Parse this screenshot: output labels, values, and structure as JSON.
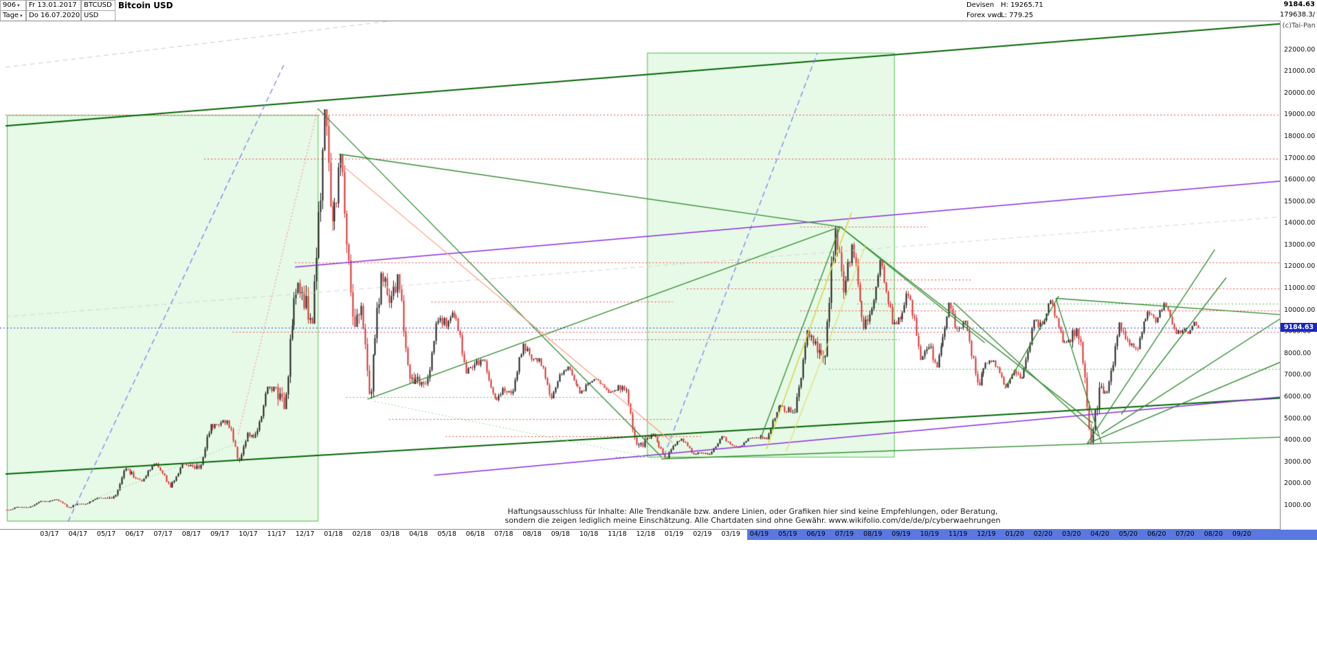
{
  "header": {
    "bars_count": "906",
    "start_date": "Fr 13.01.2017",
    "symbol": "BTCUSD",
    "title": "Bitcoin USD",
    "period": "Tage",
    "end_date": "Do 16.07.2020",
    "currency": "USD",
    "category": "Devisen",
    "high": "H: 19265.71",
    "source": "Forex vwd",
    "low": "L: 779.25",
    "last_price": "9184.63",
    "volume": "179638.3/",
    "copyright": "(c)Tai-Pan",
    "dropdown_glyph": "▾"
  },
  "disclaimer": {
    "line1": "Haftungsausschluss für Inhalte: Alle Trendkanäle bzw. andere Linien, oder Grafiken hier sind keine Empfehlungen, oder Beratung,",
    "line2": "sondern die zeigen lediglich meine Einschätzung. Alle Chartdaten sind ohne Gewähr.  www.wikifolio.com/de/de/p/cyberwaehrungen"
  },
  "chart_data": {
    "type": "candlestick",
    "symbol": "BTCUSD",
    "title": "Bitcoin USD",
    "period": "daily",
    "price_axis": {
      "ticks_top": 22000,
      "ticks_bottom": 1000,
      "step": 1000,
      "view_top": 23350,
      "view_bottom": -80
    },
    "x_tick_offset": 1.55,
    "x_ticks": [
      "03/17",
      "04/17",
      "05/17",
      "06/17",
      "07/17",
      "08/17",
      "09/17",
      "10/17",
      "11/17",
      "12/17",
      "01/18",
      "02/18",
      "03/18",
      "04/18",
      "05/18",
      "06/18",
      "07/18",
      "08/18",
      "09/18",
      "10/18",
      "11/18",
      "12/18",
      "01/19",
      "02/19",
      "03/19",
      "04/19",
      "05/19",
      "06/19",
      "07/19",
      "08/19",
      "09/19",
      "10/19",
      "11/19",
      "12/19",
      "01/20",
      "02/20",
      "03/20",
      "04/20",
      "05/20",
      "06/20",
      "07/20",
      "08/20",
      "09/20"
    ],
    "x_axis_highlight_from": "04/19",
    "candles_per_month": 14,
    "colors": {
      "up": "#151515",
      "down": "#dd2626",
      "box_fill": "rgba(170,235,170,0.28)",
      "box_stroke": "#4fc24f"
    },
    "current_price_line": {
      "price": 9184.63,
      "color": "#2840d8"
    },
    "monthly_ohlc": [
      [
        "01/17",
        800,
        935,
        779.25,
        925,
        0,
        0.55
      ],
      [
        "02/17",
        925,
        1210,
        905,
        1190,
        0.55,
        1
      ],
      [
        "03/17",
        1190,
        1290,
        890,
        1080,
        1.55,
        1
      ],
      [
        "04/17",
        1080,
        1360,
        1060,
        1350,
        2.55,
        1
      ],
      [
        "05/17",
        1350,
        2780,
        1320,
        2290,
        3.55,
        1
      ],
      [
        "06/17",
        2290,
        2990,
        2110,
        2480,
        4.55,
        1
      ],
      [
        "07/17",
        2480,
        2920,
        1830,
        2870,
        5.55,
        1
      ],
      [
        "08/17",
        2870,
        4760,
        2660,
        4720,
        6.55,
        1
      ],
      [
        "09/17",
        4720,
        4940,
        2980,
        4350,
        7.55,
        1
      ],
      [
        "10/17",
        4350,
        6480,
        4120,
        6460,
        8.55,
        1
      ],
      [
        "11/17",
        6460,
        11420,
        5440,
        10100,
        9.55,
        1
      ],
      [
        "12/17",
        10100,
        19265.71,
        9380,
        14100,
        10.55,
        1
      ],
      [
        "01/18",
        14100,
        17180,
        9230,
        10200,
        11.55,
        1
      ],
      [
        "02/18",
        10200,
        11790,
        5920,
        10340,
        12.55,
        1
      ],
      [
        "03/18",
        10340,
        11660,
        6600,
        6930,
        13.55,
        1
      ],
      [
        "04/18",
        6930,
        9760,
        6430,
        9240,
        14.55,
        1
      ],
      [
        "05/18",
        9240,
        9990,
        7080,
        7500,
        15.55,
        1
      ],
      [
        "06/18",
        7500,
        7780,
        5790,
        6400,
        16.55,
        1
      ],
      [
        "07/18",
        6400,
        8480,
        6070,
        7730,
        17.55,
        1
      ],
      [
        "08/18",
        7730,
        7790,
        5880,
        7030,
        18.55,
        1
      ],
      [
        "09/18",
        7030,
        7410,
        6160,
        6630,
        19.55,
        1
      ],
      [
        "10/18",
        6630,
        6850,
        6190,
        6320,
        20.55,
        1
      ],
      [
        "11/18",
        6320,
        6550,
        3650,
        4040,
        21.55,
        1
      ],
      [
        "12/18",
        4040,
        4310,
        3150,
        3740,
        22.55,
        1
      ],
      [
        "01/19",
        3740,
        4090,
        3350,
        3440,
        23.55,
        1
      ],
      [
        "02/19",
        3440,
        4200,
        3340,
        3830,
        24.55,
        1
      ],
      [
        "03/19",
        3830,
        4140,
        3660,
        4100,
        25.55,
        1
      ],
      [
        "04/19",
        4100,
        5640,
        4050,
        5320,
        26.55,
        1
      ],
      [
        "05/19",
        5320,
        9080,
        5280,
        8560,
        27.55,
        1
      ],
      [
        "06/19",
        8560,
        13850,
        7480,
        10820,
        28.55,
        1
      ],
      [
        "07/19",
        10820,
        13130,
        9080,
        10080,
        29.55,
        1
      ],
      [
        "08/19",
        10080,
        12320,
        9350,
        9590,
        30.55,
        1
      ],
      [
        "09/19",
        9590,
        10900,
        7710,
        8290,
        31.55,
        1
      ],
      [
        "10/19",
        8290,
        10350,
        7360,
        9150,
        32.55,
        1
      ],
      [
        "11/19",
        9150,
        9520,
        6530,
        7560,
        33.55,
        1
      ],
      [
        "12/19",
        7560,
        7690,
        6430,
        7190,
        34.55,
        1
      ],
      [
        "01/20",
        7190,
        9570,
        6850,
        9350,
        35.55,
        1
      ],
      [
        "02/20",
        9350,
        10500,
        8520,
        8540,
        36.55,
        1
      ],
      [
        "03/20",
        8540,
        9160,
        3800,
        6440,
        37.55,
        1
      ],
      [
        "04/20",
        6440,
        9440,
        6160,
        8630,
        38.55,
        1
      ],
      [
        "05/20",
        8630,
        9999,
        8110,
        9450,
        39.55,
        1
      ],
      [
        "06/20",
        9450,
        10380,
        8900,
        9140,
        40.55,
        1
      ],
      [
        "07/20",
        9140,
        9470,
        8910,
        9184.63,
        41.55,
        0.5
      ]
    ],
    "h_levels": [
      [
        19000,
        0,
        45,
        "#ee4444"
      ],
      [
        17000,
        7,
        45,
        "#ee4444"
      ],
      [
        13850,
        28,
        32.5,
        "#ee4444"
      ],
      [
        12200,
        10.2,
        45,
        "#ee4444"
      ],
      [
        11400,
        28.5,
        34,
        "#ee4444"
      ],
      [
        11000,
        24,
        45,
        "#ee4444"
      ],
      [
        10400,
        15,
        23.5,
        "#ee4444"
      ],
      [
        10000,
        28,
        45,
        "#ee4444"
      ],
      [
        9000,
        8,
        45,
        "#ee4444"
      ],
      [
        8650,
        19,
        31.5,
        "#ee4444"
      ],
      [
        5000,
        13.5,
        23.5,
        "#ee4444"
      ],
      [
        4200,
        15.5,
        24.5,
        "#ee4444"
      ],
      [
        10300,
        30,
        45,
        "#55bb55"
      ],
      [
        7300,
        29,
        45,
        "#55bb55"
      ],
      [
        3250,
        21.5,
        27,
        "#55bb55"
      ],
      [
        6000,
        12,
        21,
        "#55bb55"
      ]
    ],
    "lines": [
      [
        0,
        18500,
        45,
        23200,
        "#006400",
        2,
        null
      ],
      [
        0,
        2450,
        45,
        5950,
        "#006400",
        2,
        null
      ],
      [
        0,
        21200,
        14,
        23400,
        "#c8c8c8",
        1,
        [
          7,
          5
        ]
      ],
      [
        0,
        9700,
        45,
        14300,
        "#d4d4d4",
        1,
        [
          7,
          5
        ]
      ],
      [
        2.2,
        250,
        9.8,
        21300,
        "#8088f0",
        1.4,
        [
          8,
          5
        ]
      ],
      [
        23.2,
        3300,
        28.6,
        21870,
        "#8088f0",
        1.4,
        [
          8,
          5
        ]
      ],
      [
        10.2,
        11990,
        45,
        15950,
        "#8a2be2",
        1.5,
        null
      ],
      [
        15.1,
        2400,
        45,
        6000,
        "#8a2be2",
        1.5,
        null
      ],
      [
        11.0,
        19300,
        23.1,
        3250,
        "#2e8b2e",
        1.3,
        null
      ],
      [
        11.75,
        17200,
        29.4,
        13850,
        "#2e8b2e",
        1.3,
        null
      ],
      [
        12.75,
        5900,
        29.4,
        13850,
        "#2e8b2e",
        1.3,
        null
      ],
      [
        29.4,
        13850,
        38.3,
        4800,
        "#2e8b2e",
        1.3,
        null
      ],
      [
        29.4,
        13850,
        34.5,
        8500,
        "#2e8b2e",
        1.3,
        null
      ],
      [
        23.1,
        3150,
        45,
        4150,
        "#2e8b2e",
        1.3,
        null
      ],
      [
        26.6,
        4100,
        29.4,
        13850,
        "#2e8b2e",
        1.3,
        null
      ],
      [
        38.1,
        3850,
        42.6,
        12800,
        "#2e8b2e",
        1.3,
        null
      ],
      [
        38.1,
        3850,
        45,
        7600,
        "#2e8b2e",
        1.3,
        null
      ],
      [
        35.2,
        6400,
        37.1,
        10650,
        "#2e8b2e",
        1.3,
        null
      ],
      [
        37.0,
        10550,
        38.6,
        3900,
        "#2e8b2e",
        1.3,
        null
      ],
      [
        38.6,
        4300,
        45,
        9600,
        "#2e8b2e",
        1.3,
        null
      ],
      [
        37.0,
        10550,
        45,
        9800,
        "#2e8b2e",
        1.3,
        null
      ],
      [
        39.3,
        5200,
        43.0,
        11500,
        "#2e8b2e",
        1.3,
        null
      ],
      [
        33.4,
        10350,
        38.5,
        4200,
        "#2e8b2e",
        1.3,
        null
      ],
      [
        26.8,
        3600,
        29.8,
        14500,
        "#d6d640",
        1.5,
        null
      ],
      [
        27.5,
        3500,
        30.3,
        13000,
        "#e0e06a",
        1.2,
        null
      ],
      [
        11.75,
        16800,
        23.5,
        3900,
        "#ff9980",
        1.2,
        null
      ],
      [
        8.2,
        4300,
        11.0,
        19265,
        "#ff8080",
        1,
        [
          2,
          3
        ]
      ],
      [
        3.0,
        1250,
        9.0,
        4300,
        "#90dd90",
        1,
        [
          2,
          3
        ]
      ],
      [
        13.0,
        5800,
        23.1,
        3100,
        "#90dd90",
        1,
        [
          2,
          3
        ]
      ]
    ],
    "boxes": [
      [
        0.05,
        300,
        11.0,
        19000
      ],
      [
        22.6,
        3250,
        31.3,
        21870
      ]
    ]
  }
}
